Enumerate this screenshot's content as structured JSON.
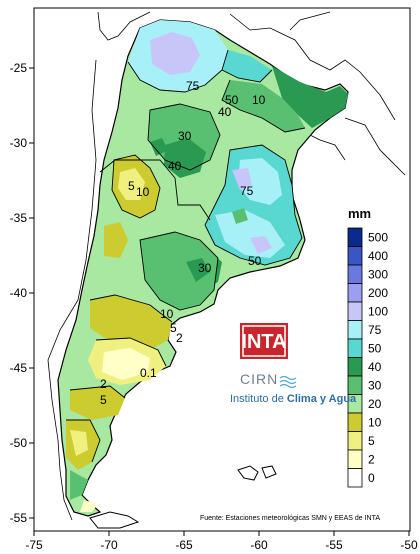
{
  "map": {
    "type": "precipitation-contour-map",
    "lon_range": [
      -75,
      -50
    ],
    "lat_range": [
      -56,
      -21
    ],
    "x_ticks": [
      "-75",
      "-70",
      "-65",
      "-60",
      "-55",
      "-50"
    ],
    "y_ticks": [
      "-25",
      "-30",
      "-35",
      "-40",
      "-45",
      "-50",
      "-55"
    ],
    "contour_labels": [
      "75",
      "50",
      "40",
      "10",
      "30",
      "40",
      "5",
      "10",
      "75",
      "50",
      "30",
      "10",
      "5",
      "0.1",
      "2",
      "5",
      "2"
    ],
    "legend": {
      "unit": "mm",
      "levels": [
        "500",
        "400",
        "300",
        "200",
        "100",
        "75",
        "50",
        "40",
        "30",
        "20",
        "10",
        "5",
        "2",
        "0"
      ],
      "colors": [
        "#0a2a8c",
        "#3a55c8",
        "#6a78e0",
        "#9b9ff0",
        "#c8c6f8",
        "#a8f0f8",
        "#58d8d0",
        "#2a9a52",
        "#58c070",
        "#a8e8a0",
        "#cccc30",
        "#f0f080",
        "#ffffc8",
        "#ffffff"
      ]
    },
    "source": "Fuente: Estaciones meteorológicas SMN y EEAS de INTA",
    "logo": {
      "name": "INTA",
      "sub": "CIRN",
      "institute_prefix": "Instituto de ",
      "institute_bold": "Clima y Agua"
    },
    "colors": {
      "ocean": "#ffffff",
      "neighbor": "#ffffff",
      "border": "#000000"
    }
  }
}
